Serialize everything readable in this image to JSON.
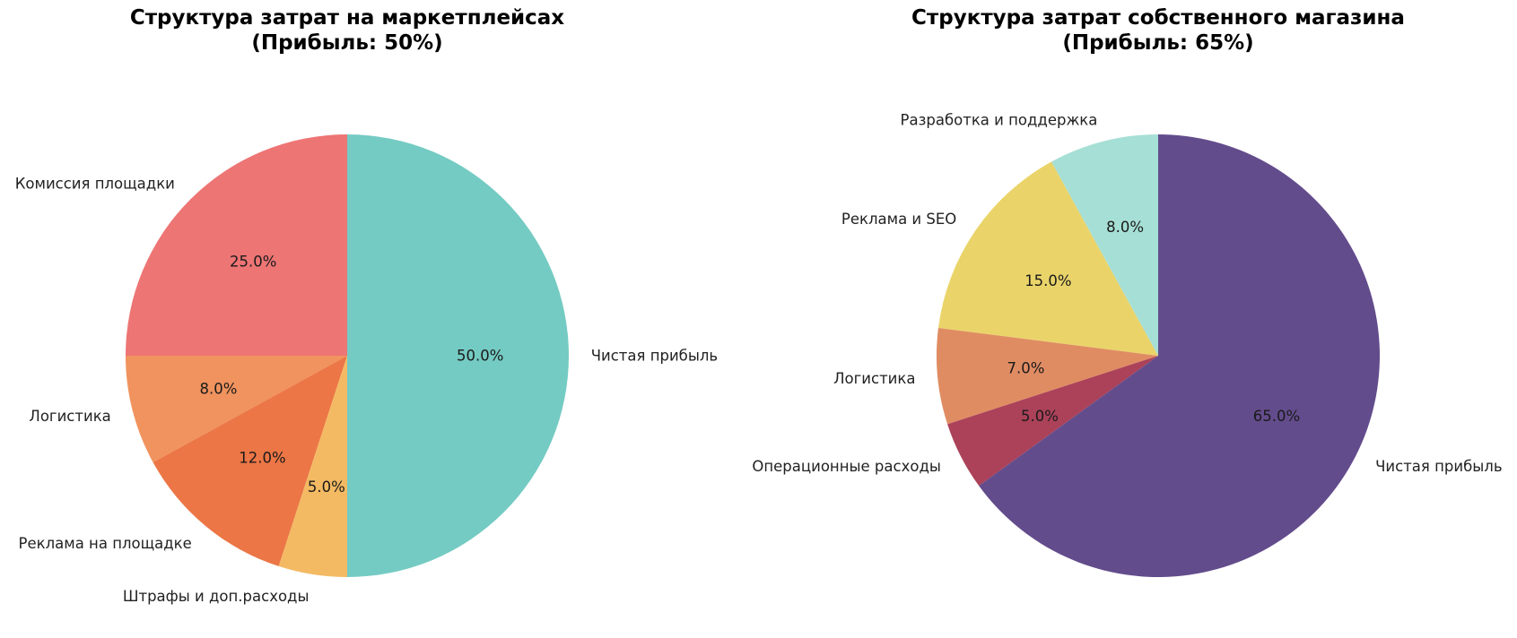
{
  "chart_data": [
    {
      "type": "pie",
      "title_line1": "Структура затрат на маркетплейсах",
      "title_line2": "(Прибыль: 50%)",
      "start_angle_deg": 90,
      "direction": "counterclockwise",
      "slices": [
        {
          "label": "Комиссия площадки",
          "value": 25.0,
          "pct_label": "25.0%",
          "color": "#ed7574"
        },
        {
          "label": "Логистика",
          "value": 8.0,
          "pct_label": "8.0%",
          "color": "#f0935e"
        },
        {
          "label": "Реклама на площадке",
          "value": 12.0,
          "pct_label": "12.0%",
          "color": "#ec7646"
        },
        {
          "label": "Штрафы и доп.расходы",
          "value": 5.0,
          "pct_label": "5.0%",
          "color": "#f3ba63"
        },
        {
          "label": "Чистая прибыль",
          "value": 50.0,
          "pct_label": "50.0%",
          "color": "#74cbc3"
        }
      ]
    },
    {
      "type": "pie",
      "title_line1": "Структура затрат собственного магазина",
      "title_line2": "(Прибыль: 65%)",
      "start_angle_deg": 90,
      "direction": "counterclockwise",
      "slices": [
        {
          "label": "Разработка и поддержка",
          "value": 8.0,
          "pct_label": "8.0%",
          "color": "#a6dfd5"
        },
        {
          "label": "Реклама и SEO",
          "value": 15.0,
          "pct_label": "15.0%",
          "color": "#ead46a"
        },
        {
          "label": "Логистика",
          "value": 7.0,
          "pct_label": "7.0%",
          "color": "#e08c63"
        },
        {
          "label": "Операционные расходы",
          "value": 5.0,
          "pct_label": "5.0%",
          "color": "#ab425a"
        },
        {
          "label": "Чистая прибыль",
          "value": 65.0,
          "pct_label": "65.0%",
          "color": "#634c8c"
        }
      ]
    }
  ]
}
